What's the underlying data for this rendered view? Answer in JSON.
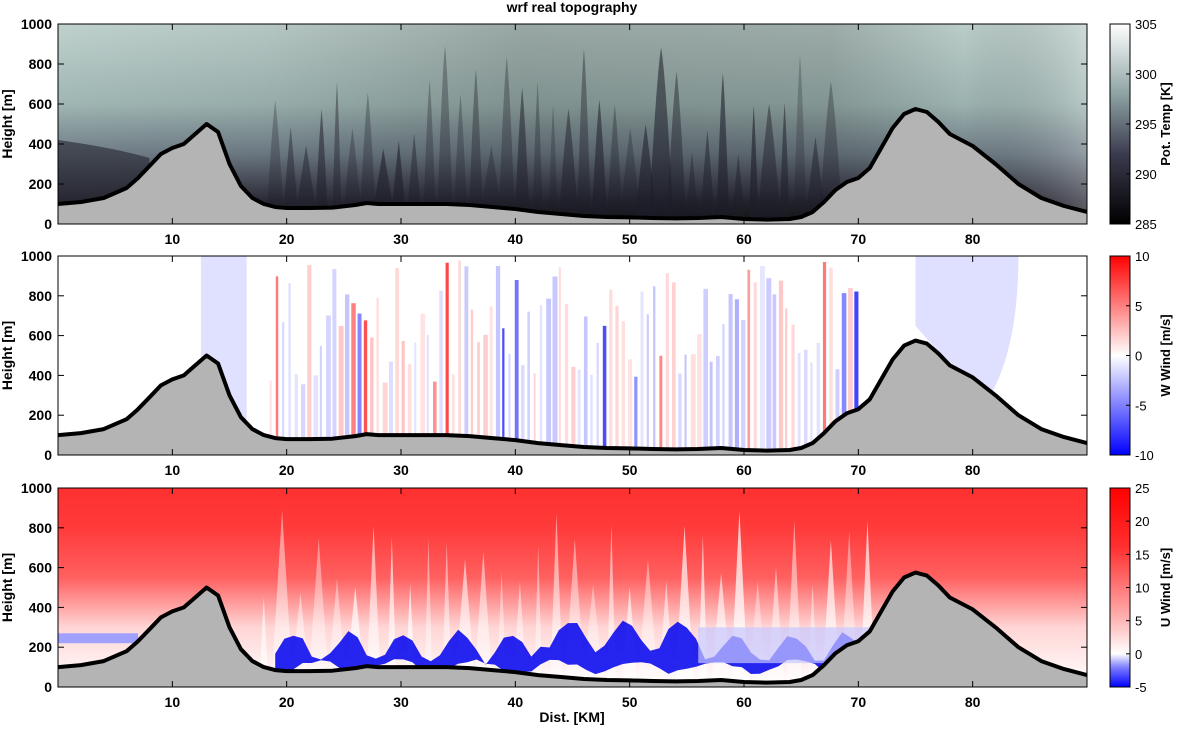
{
  "figure_title": "wrf real topography",
  "xlabel": "Dist. [KM]",
  "colors": {
    "terrain_fill": "#b4b4b4",
    "terrain_line": "#000000",
    "temp_dark": "#141418",
    "temp_light": "#f2f7f6",
    "wind_red": "#ff0000",
    "wind_blue": "#0000ff"
  },
  "chart_data": [
    {
      "type": "heatmap",
      "title": "wrf real topography",
      "ylabel": "Height [m]",
      "colorbar_label": "Pot. Temp [K]",
      "colormap": "bone",
      "xlim": [
        0,
        90
      ],
      "ylim": [
        0,
        1000
      ],
      "x_ticks": [
        10,
        20,
        30,
        40,
        50,
        60,
        70,
        80
      ],
      "y_ticks": [
        0,
        200,
        400,
        600,
        800,
        1000
      ],
      "clim": [
        285,
        305
      ],
      "colorbar_ticks": [
        285,
        290,
        295,
        300,
        305
      ]
    },
    {
      "type": "heatmap",
      "ylabel": "Height [m]",
      "colorbar_label": "W Wind [m/s]",
      "colormap": "blue-white-red",
      "xlim": [
        0,
        90
      ],
      "ylim": [
        0,
        1000
      ],
      "x_ticks": [
        10,
        20,
        30,
        40,
        50,
        60,
        70,
        80
      ],
      "y_ticks": [
        0,
        200,
        400,
        600,
        800,
        1000
      ],
      "clim": [
        -10,
        10
      ],
      "colorbar_ticks": [
        -10,
        -5,
        0,
        5,
        10
      ]
    },
    {
      "type": "heatmap",
      "ylabel": "Height [m]",
      "xlabel": "Dist. [KM]",
      "colorbar_label": "U Wind [m/s]",
      "colormap": "blue-white-red",
      "xlim": [
        0,
        90
      ],
      "ylim": [
        0,
        1000
      ],
      "x_ticks": [
        10,
        20,
        30,
        40,
        50,
        60,
        70,
        80
      ],
      "y_ticks": [
        0,
        200,
        400,
        600,
        800,
        1000
      ],
      "clim": [
        -5,
        25
      ],
      "colorbar_ticks": [
        -5,
        0,
        5,
        10,
        15,
        20,
        25
      ]
    }
  ],
  "terrain": {
    "x": [
      0,
      2,
      4,
      6,
      7,
      8,
      9,
      10,
      11,
      12,
      13,
      14,
      15,
      16,
      17,
      18,
      19,
      20,
      22,
      24,
      26,
      27,
      28,
      30,
      32,
      34,
      36,
      38,
      40,
      42,
      44,
      46,
      48,
      50,
      52,
      54,
      56,
      58,
      60,
      62,
      64,
      65,
      66,
      67,
      68,
      69,
      70,
      71,
      72,
      73,
      74,
      75,
      76,
      77,
      78,
      80,
      82,
      84,
      86,
      88,
      90
    ],
    "height_m": [
      100,
      110,
      130,
      180,
      230,
      290,
      350,
      380,
      400,
      450,
      500,
      460,
      300,
      190,
      130,
      100,
      85,
      80,
      80,
      82,
      95,
      105,
      100,
      100,
      100,
      100,
      95,
      85,
      75,
      60,
      50,
      40,
      35,
      33,
      30,
      28,
      30,
      35,
      25,
      22,
      25,
      35,
      60,
      110,
      170,
      210,
      230,
      280,
      380,
      480,
      550,
      575,
      560,
      510,
      450,
      390,
      300,
      200,
      130,
      90,
      60
    ]
  }
}
